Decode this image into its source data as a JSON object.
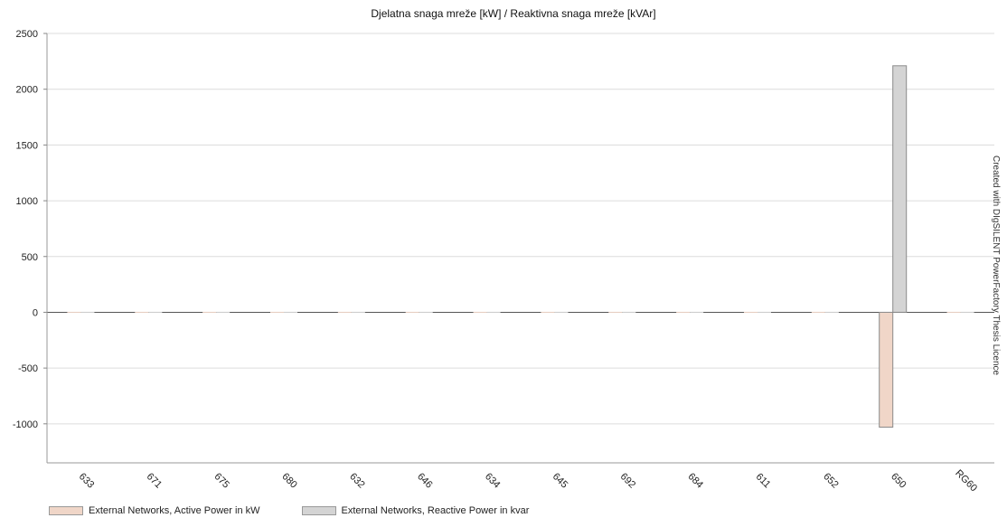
{
  "chart_data": {
    "type": "bar",
    "title": "Djelatna snaga mreže [kW] / Reaktivna snaga mreže [kVAr]",
    "categories": [
      "633",
      "671",
      "675",
      "680",
      "632",
      "646",
      "634",
      "645",
      "692",
      "684",
      "611",
      "652",
      "650",
      "RG60"
    ],
    "series": [
      {
        "name": "External Networks, Active Power in kW",
        "color": "#f0d6c8",
        "values": [
          0,
          0,
          0,
          0,
          0,
          0,
          0,
          0,
          0,
          0,
          0,
          0,
          -1030,
          0
        ]
      },
      {
        "name": "External Networks, Reactive Power in kvar",
        "color": "#d4d4d4",
        "values": [
          0,
          0,
          0,
          0,
          0,
          0,
          0,
          0,
          0,
          0,
          0,
          0,
          2210,
          0
        ]
      }
    ],
    "ylim": [
      -1350,
      2500
    ],
    "yticks": [
      -1000,
      -500,
      0,
      500,
      1000,
      1500,
      2000,
      2500
    ],
    "grid": true,
    "legend_position": "bottom-left"
  },
  "watermark": "Created with DIgSILENT PowerFactory Thesis Licence"
}
